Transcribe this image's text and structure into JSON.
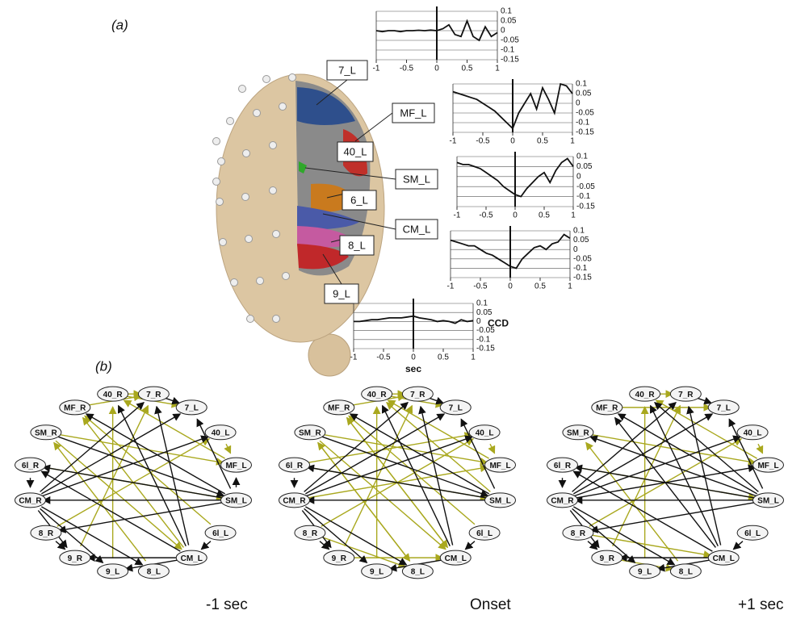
{
  "panel_a": {
    "label": "(a)",
    "regions": [
      "7_L",
      "MF_L",
      "40_L",
      "SM_L",
      "6_L",
      "CM_L",
      "8_L",
      "9_L"
    ],
    "y_axis_label": "CCD",
    "x_axis_label": "sec",
    "x": [
      -1,
      -0.9,
      -0.8,
      -0.7,
      -0.6,
      -0.5,
      -0.4,
      -0.3,
      -0.2,
      -0.1,
      0,
      0.1,
      0.2,
      0.3,
      0.4,
      0.5,
      0.6,
      0.7,
      0.8,
      0.9,
      1
    ],
    "xlim": [
      -1,
      1
    ],
    "xticks": [
      -1,
      -0.5,
      0,
      0.5,
      1
    ],
    "ylim": [
      -0.15,
      0.1
    ],
    "yticks": [
      0.1,
      0.05,
      0,
      -0.05,
      -0.1,
      -0.15
    ],
    "plots": [
      {
        "values": [
          0,
          -0.005,
          0,
          0,
          -0.005,
          0,
          0,
          0.002,
          0,
          0.003,
          0,
          0.01,
          0.03,
          -0.02,
          -0.03,
          0.05,
          -0.03,
          -0.05,
          0.02,
          -0.03,
          -0.01
        ]
      },
      {
        "values": [
          0.06,
          0.05,
          0.04,
          0.03,
          0.02,
          0,
          -0.02,
          -0.04,
          -0.07,
          -0.1,
          -0.13,
          -0.05,
          0,
          0.05,
          -0.03,
          0.08,
          0.02,
          -0.05,
          0.1,
          0.09,
          0.05
        ]
      },
      {
        "values": [
          0.07,
          0.06,
          0.06,
          0.05,
          0.04,
          0.02,
          0,
          -0.02,
          -0.05,
          -0.07,
          -0.09,
          -0.1,
          -0.06,
          -0.03,
          0,
          0.02,
          -0.03,
          0.03,
          0.07,
          0.09,
          0.05
        ]
      },
      {
        "values": [
          0.05,
          0.04,
          0.03,
          0.02,
          0.02,
          0,
          -0.02,
          -0.03,
          -0.05,
          -0.07,
          -0.09,
          -0.1,
          -0.05,
          -0.02,
          0.01,
          0.02,
          0,
          0.03,
          0.04,
          0.08,
          0.06
        ]
      },
      {
        "values": [
          0,
          0,
          0.005,
          0.01,
          0.01,
          0.015,
          0.02,
          0.02,
          0.02,
          0.025,
          0.03,
          0.02,
          0.015,
          0.01,
          0,
          0.005,
          0,
          -0.01,
          0.01,
          0,
          0.005
        ]
      }
    ]
  },
  "panel_b": {
    "label": "(b)",
    "nodes": [
      "7_R",
      "7_L",
      "40_L",
      "MF_L",
      "SM_L",
      "6l_L",
      "CM_L",
      "8_L",
      "9_L",
      "9_R",
      "8_R",
      "CM_R",
      "6l_R",
      "SM_R",
      "MF_R",
      "40_R"
    ],
    "edge_colors": {
      "black": "#111111",
      "yellow": "#a9a81e"
    },
    "graphs": [
      {
        "caption": "-1 sec",
        "black": [
          [
            0,
            1
          ],
          [
            4,
            1
          ],
          [
            4,
            14
          ],
          [
            4,
            11
          ],
          [
            4,
            12
          ],
          [
            4,
            10
          ],
          [
            11,
            2
          ],
          [
            11,
            0
          ],
          [
            11,
            1
          ],
          [
            6,
            15
          ],
          [
            6,
            0
          ],
          [
            6,
            12
          ],
          [
            11,
            9
          ],
          [
            11,
            8
          ],
          [
            11,
            7
          ],
          [
            10,
            9
          ],
          [
            6,
            8
          ],
          [
            6,
            9
          ],
          [
            12,
            11
          ],
          [
            5,
            6
          ],
          [
            4,
            3
          ],
          [
            13,
            4
          ]
        ],
        "yellow": [
          [
            15,
            0
          ],
          [
            15,
            1
          ],
          [
            14,
            0
          ],
          [
            13,
            3
          ],
          [
            13,
            6
          ],
          [
            12,
            4
          ],
          [
            6,
            14
          ],
          [
            3,
            15
          ],
          [
            2,
            3
          ],
          [
            9,
            0
          ],
          [
            7,
            13
          ],
          [
            8,
            15
          ],
          [
            5,
            14
          ],
          [
            10,
            2
          ]
        ]
      },
      {
        "caption": "Onset",
        "black": [
          [
            0,
            1
          ],
          [
            4,
            1
          ],
          [
            4,
            14
          ],
          [
            4,
            11
          ],
          [
            4,
            12
          ],
          [
            11,
            2
          ],
          [
            11,
            0
          ],
          [
            11,
            1
          ],
          [
            6,
            15
          ],
          [
            6,
            0
          ],
          [
            11,
            9
          ],
          [
            11,
            8
          ],
          [
            11,
            7
          ],
          [
            10,
            9
          ],
          [
            6,
            8
          ],
          [
            12,
            11
          ],
          [
            5,
            6
          ],
          [
            13,
            4
          ]
        ],
        "yellow": [
          [
            15,
            0
          ],
          [
            15,
            1
          ],
          [
            14,
            0
          ],
          [
            13,
            3
          ],
          [
            13,
            6
          ],
          [
            12,
            4
          ],
          [
            6,
            14
          ],
          [
            3,
            15
          ],
          [
            2,
            3
          ],
          [
            9,
            0
          ],
          [
            7,
            13
          ],
          [
            8,
            15
          ],
          [
            5,
            14
          ],
          [
            10,
            2
          ],
          [
            11,
            3
          ],
          [
            4,
            15
          ],
          [
            12,
            2
          ],
          [
            9,
            6
          ],
          [
            10,
            7
          ],
          [
            14,
            6
          ],
          [
            13,
            7
          ]
        ]
      },
      {
        "caption": "+1 sec",
        "black": [
          [
            0,
            1
          ],
          [
            4,
            1
          ],
          [
            4,
            14
          ],
          [
            4,
            11
          ],
          [
            4,
            12
          ],
          [
            4,
            10
          ],
          [
            11,
            2
          ],
          [
            11,
            0
          ],
          [
            11,
            1
          ],
          [
            6,
            15
          ],
          [
            6,
            0
          ],
          [
            6,
            12
          ],
          [
            11,
            9
          ],
          [
            11,
            8
          ],
          [
            11,
            7
          ],
          [
            10,
            9
          ],
          [
            6,
            8
          ],
          [
            6,
            9
          ],
          [
            12,
            11
          ],
          [
            5,
            6
          ],
          [
            4,
            13
          ],
          [
            11,
            3
          ],
          [
            6,
            14
          ],
          [
            4,
            15
          ]
        ],
        "yellow": [
          [
            15,
            0
          ],
          [
            14,
            1
          ],
          [
            13,
            3
          ],
          [
            12,
            4
          ],
          [
            3,
            15
          ],
          [
            2,
            3
          ],
          [
            9,
            0
          ],
          [
            7,
            13
          ],
          [
            8,
            15
          ],
          [
            10,
            2
          ],
          [
            9,
            7
          ],
          [
            10,
            6
          ]
        ]
      }
    ]
  }
}
